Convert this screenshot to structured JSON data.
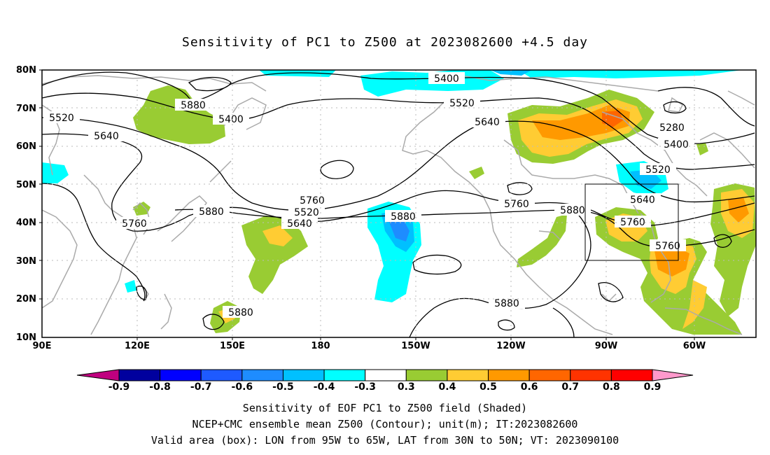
{
  "title": "Sensitivity of PC1 to Z500 at 2023082600 +4.5 day",
  "lat_labels": [
    "80N",
    "70N",
    "60N",
    "50N",
    "40N",
    "30N",
    "20N",
    "10N"
  ],
  "lon_labels": [
    "90E",
    "120E",
    "150E",
    "180",
    "150W",
    "120W",
    "90W",
    "60W"
  ],
  "contour_labels": [
    "5400",
    "5520",
    "5640",
    "5760",
    "5880",
    "5400",
    "5520",
    "5640",
    "5760",
    "5520",
    "5640",
    "5760",
    "5880",
    "5880",
    "5760",
    "5880",
    "5280",
    "5400",
    "5520",
    "5640",
    "5760",
    "5880",
    "5880"
  ],
  "colorbar": {
    "labels": [
      "-0.9",
      "-0.8",
      "-0.7",
      "-0.6",
      "-0.5",
      "-0.4",
      "-0.3",
      "0.3",
      "0.4",
      "0.5",
      "0.6",
      "0.7",
      "0.8",
      "0.9"
    ],
    "colors": [
      "#00009e",
      "#0000ff",
      "#1e5aff",
      "#1e8cff",
      "#00c0ff",
      "#00ffff",
      "#ffffff",
      "#99cc33",
      "#ffcc33",
      "#ff9900",
      "#ff6600",
      "#ff3300",
      "#ff0000"
    ],
    "low_end_color": "#c0007f",
    "high_end_color": "#ff99cc"
  },
  "valid_box": {
    "lon_min": -95,
    "lon_max": -65,
    "lat_min": 30,
    "lat_max": 50
  },
  "captions": {
    "line1": "Sensitivity of EOF PC1 to Z500 field (Shaded)",
    "line2": "NCEP+CMC ensemble mean Z500 (Contour); unit(m); IT:2023082600",
    "line3": "Valid area (box): LON from 95W to 65W, LAT from 30N to 50N; VT: 2023090100"
  }
}
